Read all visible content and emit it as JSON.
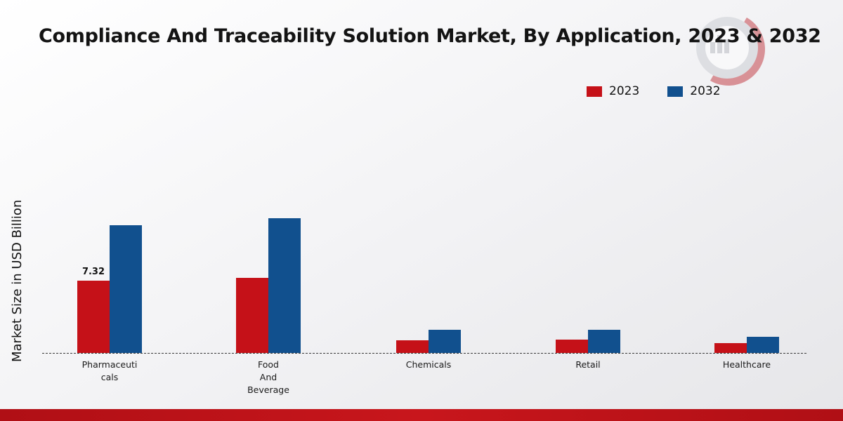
{
  "page": {
    "title": "Compliance And Traceability Solution Market, By Application, 2023 & 2032"
  },
  "colors": {
    "series_2023": "#c51118",
    "series_2032": "#11508e",
    "footer_band": "#b00f15",
    "baseline": "#3a3a3a"
  },
  "chart_data": {
    "type": "bar",
    "title": "Compliance And Traceability Solution Market, By Application, 2023 & 2032",
    "xlabel": "",
    "ylabel": "Market Size in USD Billion",
    "categories": [
      "Pharmaceuticals",
      "Food And Beverage",
      "Chemicals",
      "Retail",
      "Healthcare"
    ],
    "category_lines": [
      [
        "Pharmaceuti",
        "cals"
      ],
      [
        "Food",
        "And",
        "Beverage"
      ],
      [
        "Chemicals"
      ],
      [
        "Retail"
      ],
      [
        "Healthcare"
      ]
    ],
    "series": [
      {
        "name": "2023",
        "color": "#c51118",
        "values": [
          7.32,
          7.6,
          1.3,
          1.35,
          1.0
        ]
      },
      {
        "name": "2032",
        "color": "#11508e",
        "values": [
          12.9,
          13.65,
          2.35,
          2.35,
          1.65
        ]
      }
    ],
    "ylim": [
      0,
      15
    ],
    "grid": false,
    "legend_position": "top-right",
    "annotations": [
      {
        "series": 0,
        "category": 0,
        "text": "7.32"
      }
    ]
  }
}
